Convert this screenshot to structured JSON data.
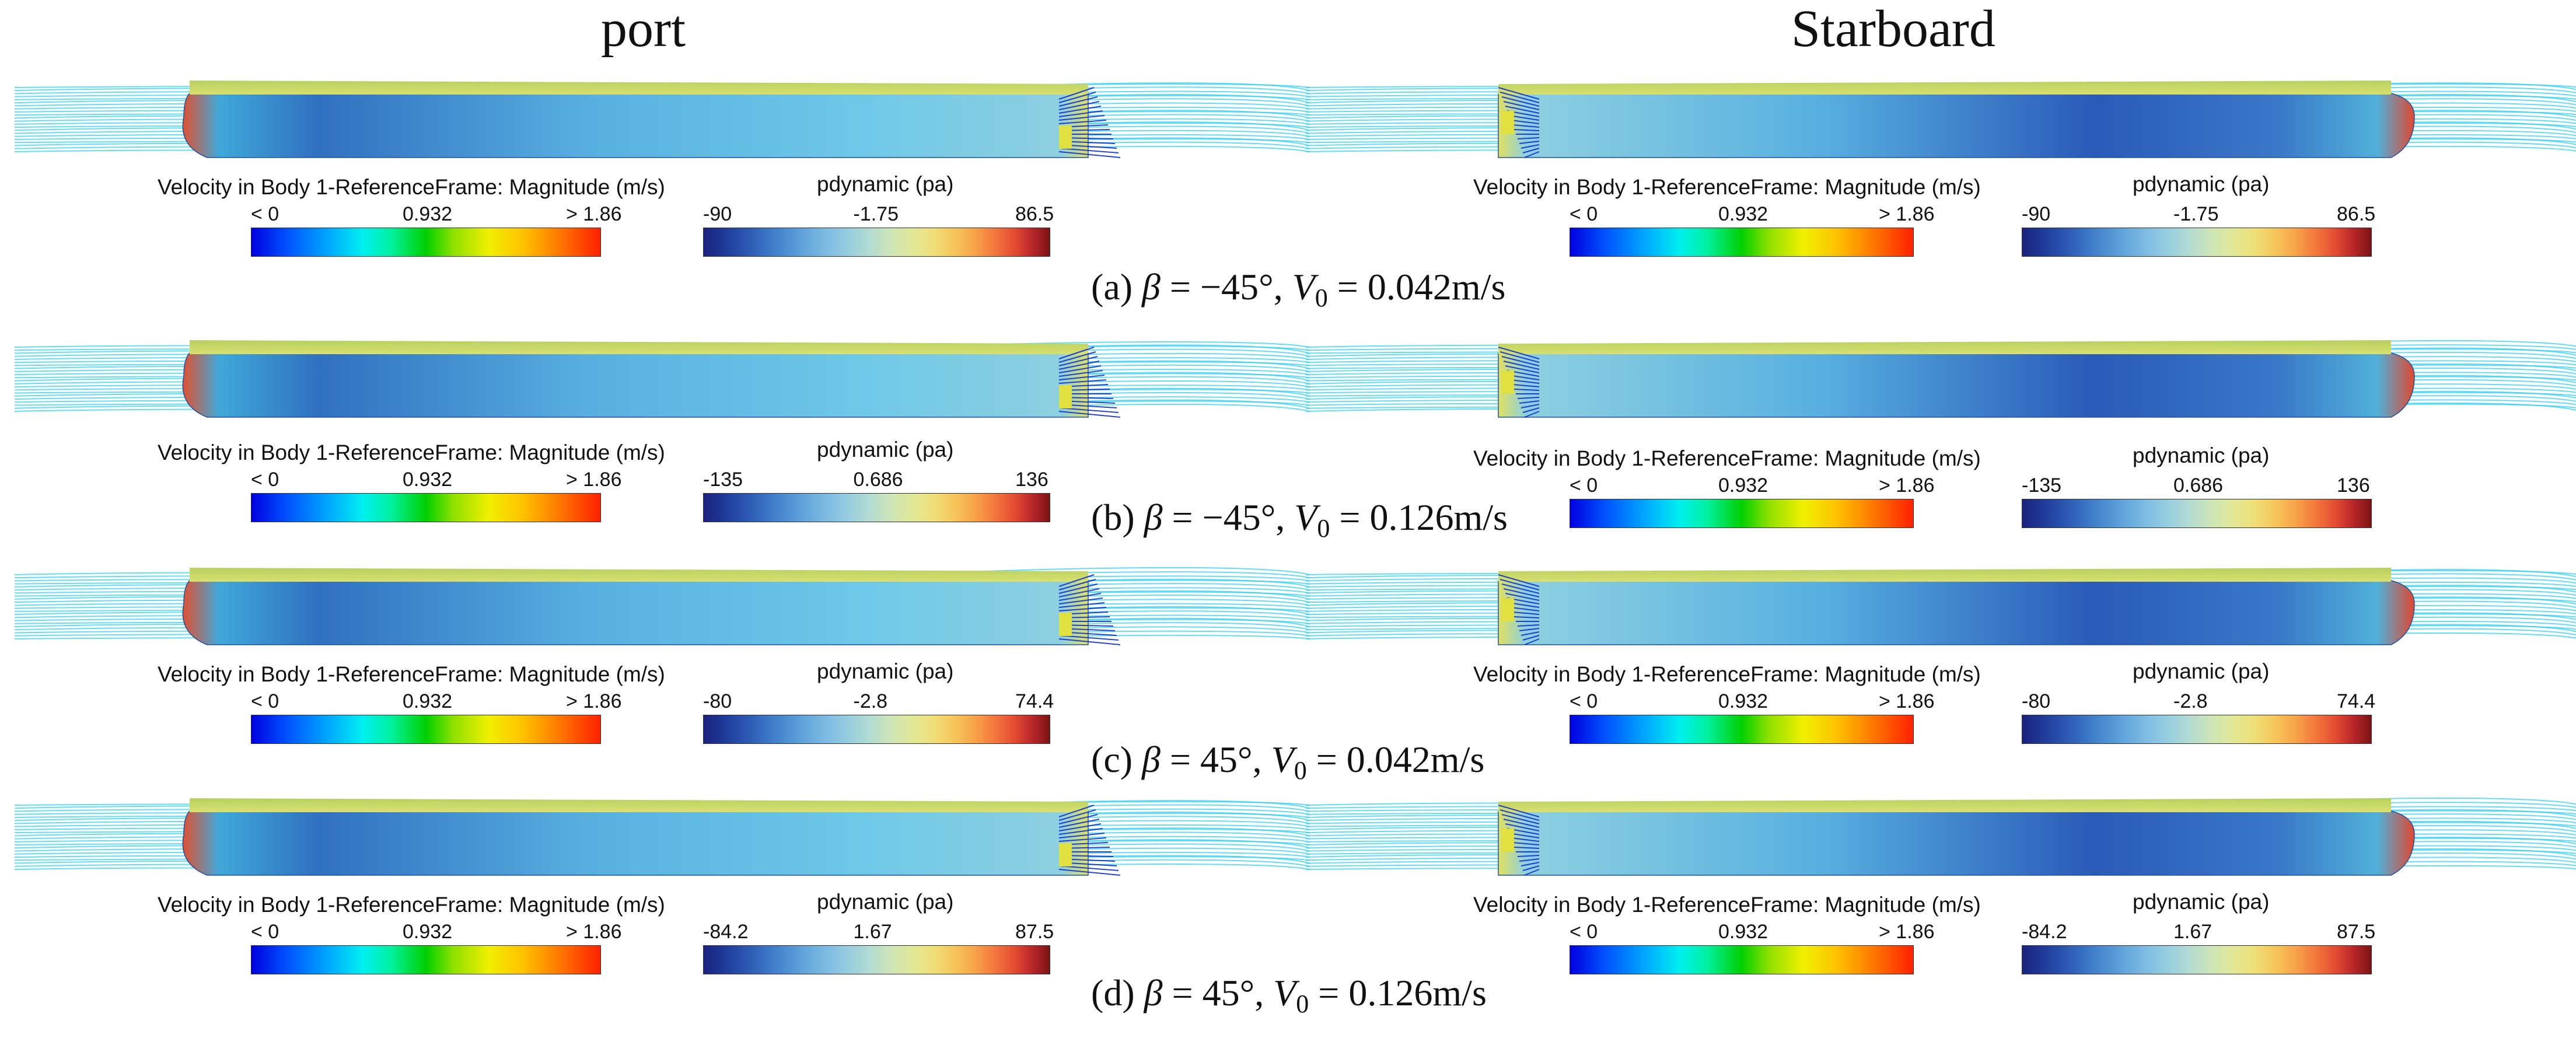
{
  "headers": {
    "left": "port",
    "right": "Starboard"
  },
  "labels": {
    "velocity_title": "Velocity in Body 1-ReferenceFrame: Magnitude (m/s)",
    "pressure_title": "pdynamic (pa)",
    "beta_symbol": "β",
    "v_symbol": "V",
    "v_subscript": "0"
  },
  "panels": [
    {
      "id": "a",
      "caption": {
        "prefix": "(a)",
        "beta": "= −45°,",
        "velocity": "= 0.042m/s"
      },
      "velocity_scale": {
        "min": "< 0",
        "mid": "0.932",
        "max": "> 1.86"
      },
      "pressure_scale": {
        "min": "-90",
        "mid": "-1.75",
        "max": "86.5"
      }
    },
    {
      "id": "b",
      "caption": {
        "prefix": "(b)",
        "beta": "= −45°,",
        "velocity": "= 0.126m/s"
      },
      "velocity_scale": {
        "min": "< 0",
        "mid": "0.932",
        "max": "> 1.86"
      },
      "pressure_scale": {
        "min": "-135",
        "mid": "0.686",
        "max": "136"
      }
    },
    {
      "id": "c",
      "caption": {
        "prefix": "(c)",
        "beta": "= 45°,",
        "velocity": "= 0.042m/s"
      },
      "velocity_scale": {
        "min": "< 0",
        "mid": "0.932",
        "max": "> 1.86"
      },
      "pressure_scale": {
        "min": "-80",
        "mid": "-2.8",
        "max": "74.4"
      }
    },
    {
      "id": "d",
      "caption": {
        "prefix": "(d)",
        "beta": "= 45°,",
        "velocity": "= 0.126m/s"
      },
      "velocity_scale": {
        "min": "< 0",
        "mid": "0.932",
        "max": "> 1.86"
      },
      "pressure_scale": {
        "min": "-84.2",
        "mid": "1.67",
        "max": "87.5"
      }
    }
  ]
}
